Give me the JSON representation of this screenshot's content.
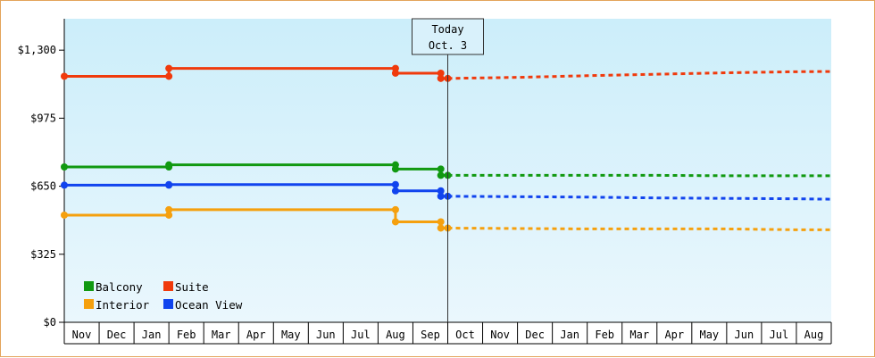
{
  "chart_data": {
    "type": "line",
    "title": "",
    "xlabel": "",
    "ylabel": "",
    "ylim": [
      0,
      1450
    ],
    "y_ticks": [
      {
        "value": 0,
        "label": "$0"
      },
      {
        "value": 325,
        "label": "$325"
      },
      {
        "value": 650,
        "label": "$650"
      },
      {
        "value": 975,
        "label": "$975"
      },
      {
        "value": 1300,
        "label": "$1,300"
      }
    ],
    "x_months": [
      "Nov",
      "Dec",
      "Jan",
      "Feb",
      "Mar",
      "Apr",
      "May",
      "Jun",
      "Jul",
      "Aug",
      "Sep",
      "Oct",
      "Nov",
      "Dec",
      "Jan",
      "Feb",
      "Mar",
      "Apr",
      "May",
      "Jun",
      "Jul",
      "Aug"
    ],
    "today_index": 11,
    "today_label": [
      "Today",
      "Oct. 3"
    ],
    "background_gradient": [
      "#cceefa",
      "#eaf7fd"
    ],
    "legend": {
      "placement": "bottom-left",
      "items": [
        {
          "name": "Balcony",
          "color": "#119911"
        },
        {
          "name": "Suite",
          "color": "#f03a0c"
        },
        {
          "name": "Interior",
          "color": "#f5a00e"
        },
        {
          "name": "Ocean View",
          "color": "#1144ee"
        }
      ]
    },
    "series": [
      {
        "name": "Balcony",
        "color": "#119911",
        "history": [
          [
            0,
            742
          ],
          [
            3,
            742
          ],
          [
            3,
            752
          ],
          [
            9.5,
            752
          ],
          [
            9.5,
            732
          ],
          [
            10.8,
            732
          ],
          [
            10.8,
            702
          ],
          [
            11,
            702
          ]
        ],
        "markers": [
          [
            0,
            742
          ],
          [
            3,
            742
          ],
          [
            3,
            752
          ],
          [
            9.5,
            752
          ],
          [
            9.5,
            732
          ],
          [
            10.8,
            732
          ],
          [
            10.8,
            702
          ],
          [
            11,
            702
          ]
        ],
        "forecast": [
          [
            11,
            702
          ],
          [
            13,
            702
          ],
          [
            15,
            702
          ],
          [
            17,
            702
          ],
          [
            19,
            700
          ],
          [
            21,
            700
          ],
          [
            22,
            700
          ]
        ]
      },
      {
        "name": "Suite",
        "color": "#f03a0c",
        "history": [
          [
            0,
            1175
          ],
          [
            3,
            1175
          ],
          [
            3,
            1213
          ],
          [
            9.5,
            1213
          ],
          [
            9.5,
            1190
          ],
          [
            10.8,
            1190
          ],
          [
            10.8,
            1165
          ],
          [
            11,
            1165
          ]
        ],
        "markers": [
          [
            0,
            1175
          ],
          [
            3,
            1175
          ],
          [
            3,
            1213
          ],
          [
            9.5,
            1213
          ],
          [
            9.5,
            1190
          ],
          [
            10.8,
            1190
          ],
          [
            10.8,
            1165
          ],
          [
            11,
            1165
          ]
        ],
        "forecast": [
          [
            11,
            1165
          ],
          [
            13,
            1170
          ],
          [
            15,
            1178
          ],
          [
            17,
            1185
          ],
          [
            19,
            1192
          ],
          [
            21,
            1197
          ],
          [
            22,
            1198
          ]
        ]
      },
      {
        "name": "Interior",
        "color": "#f5a00e",
        "history": [
          [
            0,
            512
          ],
          [
            3,
            512
          ],
          [
            3,
            538
          ],
          [
            9.5,
            538
          ],
          [
            9.5,
            480
          ],
          [
            10.8,
            480
          ],
          [
            10.8,
            450
          ],
          [
            11,
            450
          ]
        ],
        "markers": [
          [
            0,
            512
          ],
          [
            3,
            512
          ],
          [
            3,
            538
          ],
          [
            9.5,
            538
          ],
          [
            9.5,
            480
          ],
          [
            10.8,
            480
          ],
          [
            10.8,
            450
          ],
          [
            11,
            450
          ]
        ],
        "forecast": [
          [
            11,
            450
          ],
          [
            13,
            448
          ],
          [
            15,
            446
          ],
          [
            17,
            446
          ],
          [
            19,
            446
          ],
          [
            21,
            442
          ],
          [
            22,
            442
          ]
        ]
      },
      {
        "name": "Ocean View",
        "color": "#1144ee",
        "history": [
          [
            0,
            655
          ],
          [
            3,
            655
          ],
          [
            3,
            658
          ],
          [
            9.5,
            658
          ],
          [
            9.5,
            628
          ],
          [
            10.8,
            628
          ],
          [
            10.8,
            602
          ],
          [
            11,
            602
          ]
        ],
        "markers": [
          [
            0,
            655
          ],
          [
            3,
            655
          ],
          [
            3,
            658
          ],
          [
            9.5,
            658
          ],
          [
            9.5,
            628
          ],
          [
            10.8,
            628
          ],
          [
            10.8,
            602
          ],
          [
            11,
            602
          ]
        ],
        "forecast": [
          [
            11,
            602
          ],
          [
            13,
            600
          ],
          [
            15,
            598
          ],
          [
            17,
            594
          ],
          [
            19,
            592
          ],
          [
            21,
            590
          ],
          [
            22,
            588
          ]
        ]
      }
    ]
  }
}
